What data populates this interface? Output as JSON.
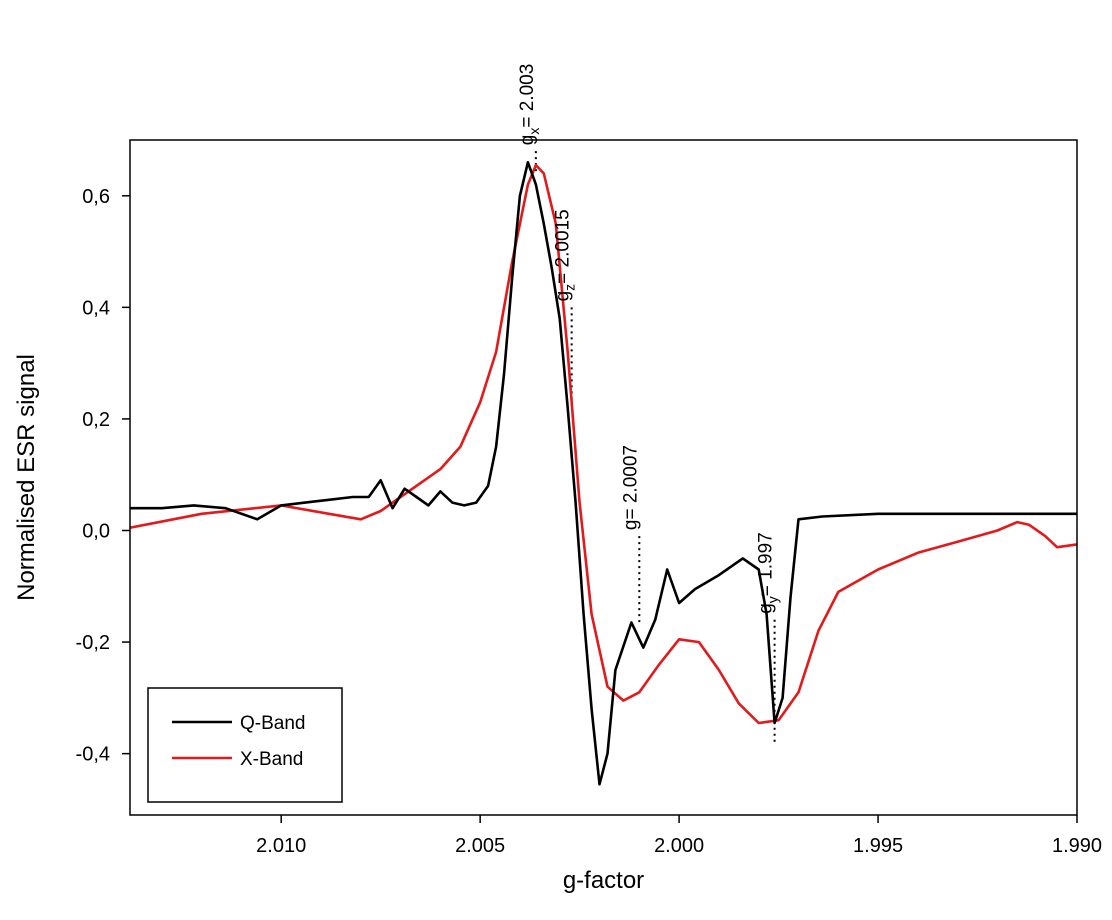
{
  "chart_data": {
    "type": "line",
    "title": "",
    "xlabel": "g-factor",
    "ylabel": "Normalised ESR signal",
    "x_reversed": true,
    "xlim": [
      2.0138,
      1.99
    ],
    "ylim": [
      -0.51,
      0.7
    ],
    "grid": false,
    "legend_position": "bottom-left",
    "x_ticks": [
      {
        "value": 2.01,
        "label": "2.010"
      },
      {
        "value": 2.005,
        "label": "2.005"
      },
      {
        "value": 2.0,
        "label": "2.000"
      },
      {
        "value": 1.995,
        "label": "1.995"
      },
      {
        "value": 1.99,
        "label": "1.990"
      }
    ],
    "y_ticks": [
      {
        "value": 0.6,
        "label": "0,6"
      },
      {
        "value": 0.4,
        "label": "0,4"
      },
      {
        "value": 0.2,
        "label": "0,2"
      },
      {
        "value": 0.0,
        "label": "0,0"
      },
      {
        "value": -0.2,
        "label": "-0,2"
      },
      {
        "value": -0.4,
        "label": "-0,4"
      }
    ],
    "series": [
      {
        "name": "Q-Band",
        "color": "#000000",
        "points": [
          [
            2.0138,
            0.04
          ],
          [
            2.013,
            0.04
          ],
          [
            2.0122,
            0.045
          ],
          [
            2.0114,
            0.04
          ],
          [
            2.0106,
            0.02
          ],
          [
            2.01,
            0.045
          ],
          [
            2.0094,
            0.05
          ],
          [
            2.0088,
            0.055
          ],
          [
            2.0082,
            0.06
          ],
          [
            2.0078,
            0.06
          ],
          [
            2.0075,
            0.09
          ],
          [
            2.0072,
            0.04
          ],
          [
            2.0069,
            0.075
          ],
          [
            2.0066,
            0.06
          ],
          [
            2.0063,
            0.045
          ],
          [
            2.006,
            0.07
          ],
          [
            2.0057,
            0.05
          ],
          [
            2.0054,
            0.045
          ],
          [
            2.0051,
            0.05
          ],
          [
            2.0048,
            0.08
          ],
          [
            2.0046,
            0.15
          ],
          [
            2.0044,
            0.28
          ],
          [
            2.0042,
            0.45
          ],
          [
            2.004,
            0.6
          ],
          [
            2.0038,
            0.66
          ],
          [
            2.0036,
            0.62
          ],
          [
            2.0034,
            0.55
          ],
          [
            2.0032,
            0.47
          ],
          [
            2.003,
            0.38
          ],
          [
            2.0028,
            0.22
          ],
          [
            2.0026,
            0.05
          ],
          [
            2.0024,
            -0.15
          ],
          [
            2.0022,
            -0.32
          ],
          [
            2.002,
            -0.455
          ],
          [
            2.0018,
            -0.4
          ],
          [
            2.0016,
            -0.25
          ],
          [
            2.0012,
            -0.165
          ],
          [
            2.0009,
            -0.21
          ],
          [
            2.0006,
            -0.16
          ],
          [
            2.0003,
            -0.07
          ],
          [
            2.0,
            -0.13
          ],
          [
            1.9996,
            -0.105
          ],
          [
            1.999,
            -0.08
          ],
          [
            1.9984,
            -0.05
          ],
          [
            1.998,
            -0.07
          ],
          [
            1.9978,
            -0.15
          ],
          [
            1.9976,
            -0.345
          ],
          [
            1.9974,
            -0.3
          ],
          [
            1.9972,
            -0.12
          ],
          [
            1.997,
            0.02
          ],
          [
            1.9964,
            0.025
          ],
          [
            1.995,
            0.03
          ],
          [
            1.993,
            0.03
          ],
          [
            1.991,
            0.03
          ],
          [
            1.99,
            0.03
          ]
        ]
      },
      {
        "name": "X-Band",
        "color": "#e31a1c",
        "points": [
          [
            2.0138,
            0.005
          ],
          [
            2.012,
            0.03
          ],
          [
            2.01,
            0.045
          ],
          [
            2.0088,
            0.03
          ],
          [
            2.008,
            0.02
          ],
          [
            2.0075,
            0.035
          ],
          [
            2.007,
            0.06
          ],
          [
            2.0065,
            0.085
          ],
          [
            2.006,
            0.11
          ],
          [
            2.0055,
            0.15
          ],
          [
            2.005,
            0.23
          ],
          [
            2.0046,
            0.32
          ],
          [
            2.0042,
            0.48
          ],
          [
            2.0038,
            0.62
          ],
          [
            2.0036,
            0.655
          ],
          [
            2.0034,
            0.64
          ],
          [
            2.0031,
            0.55
          ],
          [
            2.0028,
            0.32
          ],
          [
            2.0025,
            0.05
          ],
          [
            2.0022,
            -0.15
          ],
          [
            2.0018,
            -0.28
          ],
          [
            2.0014,
            -0.305
          ],
          [
            2.001,
            -0.29
          ],
          [
            2.0005,
            -0.24
          ],
          [
            2.0,
            -0.195
          ],
          [
            1.9995,
            -0.2
          ],
          [
            1.999,
            -0.25
          ],
          [
            1.9985,
            -0.31
          ],
          [
            1.998,
            -0.345
          ],
          [
            1.9975,
            -0.34
          ],
          [
            1.997,
            -0.29
          ],
          [
            1.9965,
            -0.18
          ],
          [
            1.996,
            -0.11
          ],
          [
            1.995,
            -0.07
          ],
          [
            1.994,
            -0.04
          ],
          [
            1.993,
            -0.02
          ],
          [
            1.992,
            0.0
          ],
          [
            1.9915,
            0.015
          ],
          [
            1.9912,
            0.01
          ],
          [
            1.9908,
            -0.01
          ],
          [
            1.9905,
            -0.03
          ],
          [
            1.99,
            -0.025
          ]
        ]
      }
    ],
    "annotations": [
      {
        "id": "gx",
        "main": "g",
        "sub": "x",
        "rest": "= 2.003",
        "x": 2.0036,
        "y_top": 0.68,
        "y_bottom": 0.64
      },
      {
        "id": "gz",
        "main": "g",
        "sub": "z",
        "rest": "= 2.0015",
        "x": 2.0027,
        "y_top": 0.4,
        "y_bottom": 0.22
      },
      {
        "id": "g",
        "main": "g",
        "sub": "",
        "rest": "= 2.0007",
        "x": 2.001,
        "y_top": -0.01,
        "y_bottom": -0.17
      },
      {
        "id": "gy",
        "main": "g",
        "sub": "y",
        "rest": "= 1.997",
        "x": 1.9976,
        "y_top": -0.16,
        "y_bottom": -0.38
      }
    ]
  }
}
